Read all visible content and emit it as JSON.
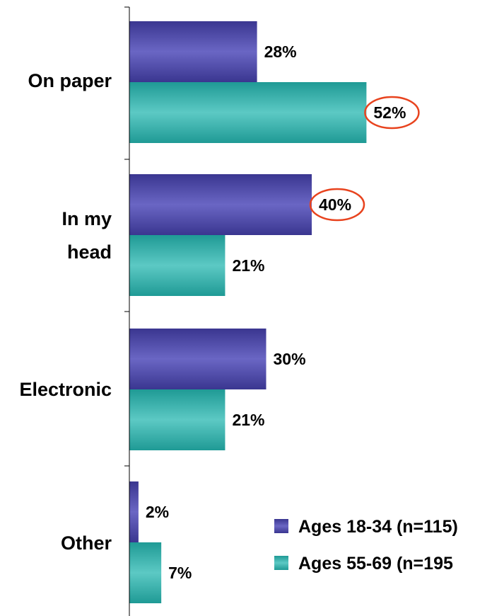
{
  "chart_data": {
    "type": "bar",
    "orientation": "horizontal",
    "categories": [
      "On paper",
      "In my head",
      "Electronic",
      "Other"
    ],
    "series": [
      {
        "name": "Ages 18-34 (n=115)",
        "values": [
          28,
          40,
          30,
          2
        ],
        "labels": [
          "28%",
          "40%",
          "30%",
          "2%"
        ],
        "color": "#4b47a8"
      },
      {
        "name": "Ages 55-69 (n=195",
        "values": [
          52,
          21,
          21,
          7
        ],
        "labels": [
          "52%",
          "21%",
          "21%",
          "7%"
        ],
        "color": "#2fb0ab"
      }
    ],
    "highlighted": [
      {
        "series": 1,
        "category": 0
      },
      {
        "series": 0,
        "category": 1
      }
    ],
    "highlight_color": "#e8431e",
    "legend_position": "bottom-right",
    "xlim": [
      0,
      100
    ],
    "grid": false
  }
}
